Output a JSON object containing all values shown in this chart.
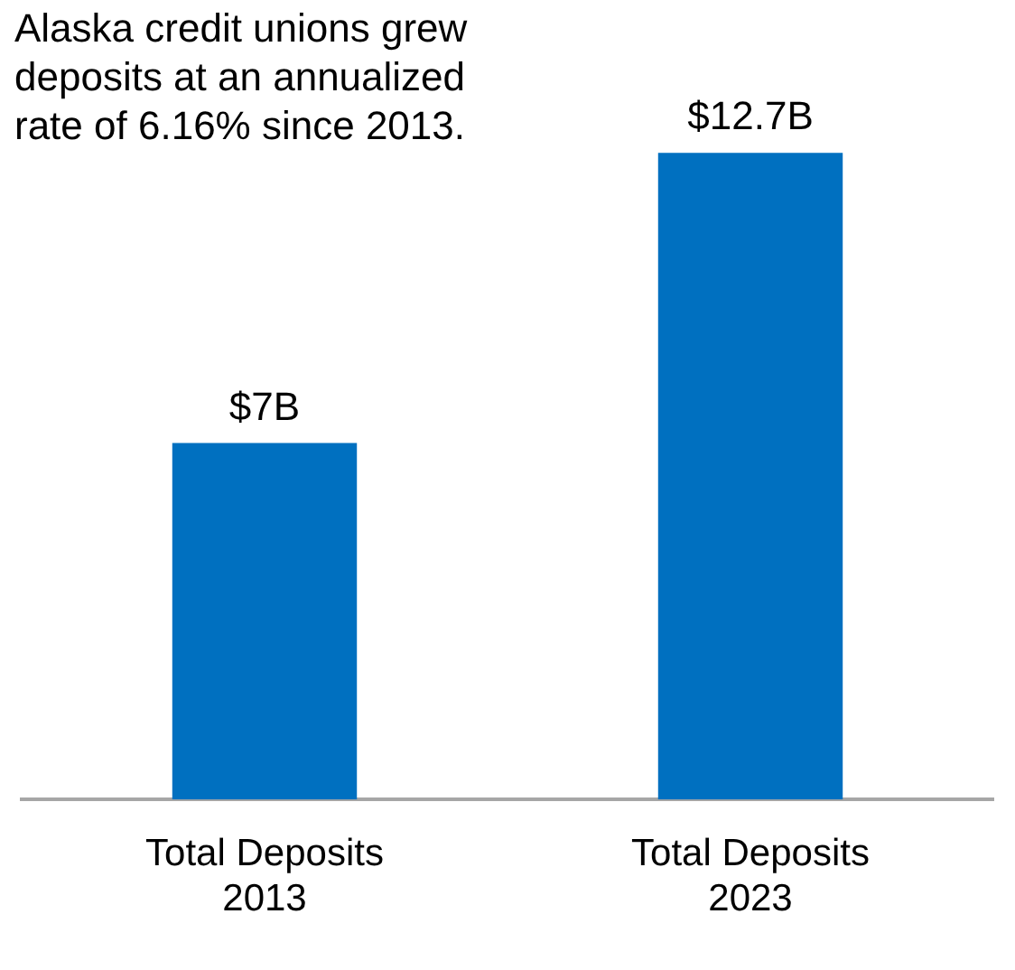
{
  "chart_data": {
    "type": "bar",
    "categories": [
      "Total Deposits 2013",
      "Total Deposits 2023"
    ],
    "values": [
      7,
      12.7
    ],
    "color": "#0070c0",
    "value_labels": [
      "$7B",
      "$12.7B"
    ],
    "annotations": [
      "Alaska credit unions grew deposits at an annualized rate of 6.16% since 2013."
    ],
    "grid": false,
    "legend": false,
    "tick_labels": "x"
  }
}
